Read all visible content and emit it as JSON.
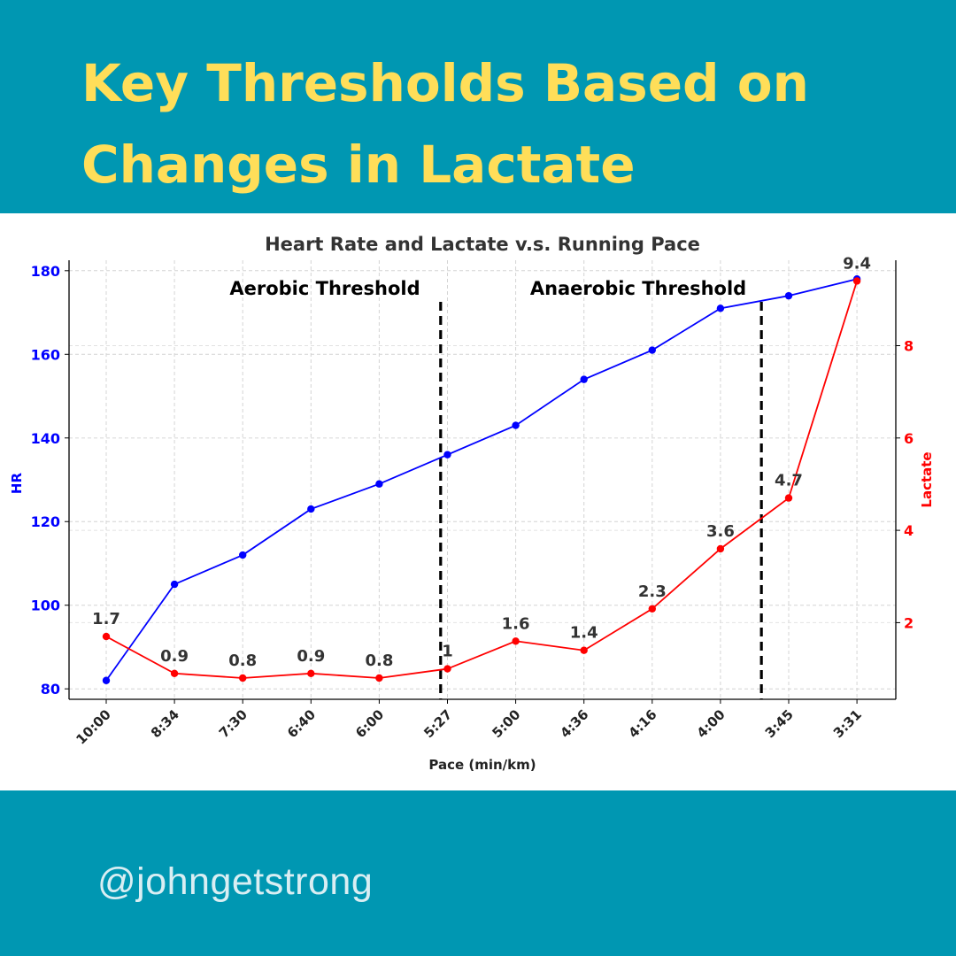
{
  "header": {
    "title": "Key Thresholds Based on Changes in Lactate"
  },
  "footer": {
    "handle": "@johngetstrong"
  },
  "colors": {
    "background": "#0097b2",
    "title": "#ffde59",
    "hr_series": "#0000ff",
    "lactate_series": "#ff0000",
    "panel": "#ffffff"
  },
  "chart_data": {
    "type": "line",
    "title": "Heart Rate and Lactate v.s. Running Pace",
    "xlabel": "Pace (min/km)",
    "categories": [
      "10:00",
      "8:34",
      "7:30",
      "6:40",
      "6:00",
      "5:27",
      "5:00",
      "4:36",
      "4:16",
      "4:00",
      "3:45",
      "3:31"
    ],
    "y_left": {
      "label": "HR",
      "range": [
        77.5,
        182.5
      ],
      "ticks": [
        80,
        100,
        120,
        140,
        160,
        180
      ],
      "color": "#0000ff"
    },
    "y_right": {
      "label": "Lactate",
      "range": [
        0.34,
        9.85
      ],
      "ticks": [
        2,
        4,
        6,
        8
      ],
      "color": "#ff0000"
    },
    "series": [
      {
        "name": "HR",
        "axis": "left",
        "color": "#0000ff",
        "show_labels": false,
        "values": [
          82,
          105,
          112,
          123,
          129,
          136,
          143,
          154,
          161,
          171,
          174,
          178
        ]
      },
      {
        "name": "Lactate",
        "axis": "right",
        "color": "#ff0000",
        "show_labels": true,
        "values": [
          1.7,
          0.9,
          0.8,
          0.9,
          0.8,
          1.0,
          1.6,
          1.4,
          2.3,
          3.6,
          4.7,
          9.4
        ],
        "labels": [
          "1.7",
          "0.9",
          "0.8",
          "0.9",
          "0.8",
          "1",
          "1.6",
          "1.4",
          "2.3",
          "3.6",
          "4.7",
          "9.4"
        ]
      }
    ],
    "thresholds": [
      {
        "label": "Aerobic Threshold",
        "x_between": [
          4,
          5
        ],
        "x_fraction": 0.9
      },
      {
        "label": "Anaerobic Threshold",
        "x_between": [
          9,
          10
        ],
        "x_fraction": 0.6
      }
    ],
    "grid": true
  }
}
